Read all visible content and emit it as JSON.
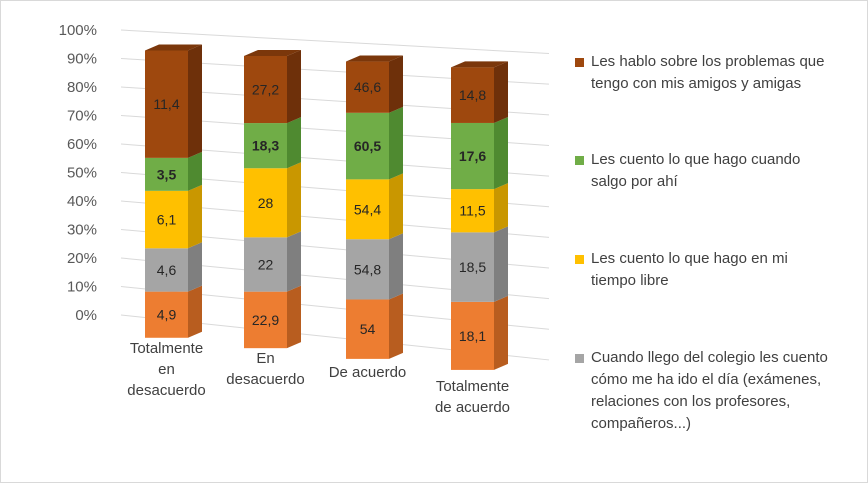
{
  "chart_data": {
    "type": "bar",
    "subtype": "stacked-100-3d",
    "categories": [
      [
        "Totalmente",
        "en",
        "desacuerdo"
      ],
      [
        "En",
        "desacuerdo"
      ],
      [
        "De acuerdo"
      ],
      [
        "Totalmente",
        "de acuerdo"
      ]
    ],
    "yticks": [
      "0%",
      "10%",
      "20%",
      "30%",
      "40%",
      "50%",
      "60%",
      "70%",
      "80%",
      "90%",
      "100%"
    ],
    "ylim": [
      0,
      100
    ],
    "grid": true,
    "legend_position": "right",
    "series": [
      {
        "name": "Cuando llego del colegio les cuento cómo me ha ido el día (exámenes, relaciones con los profesores, compañeros...)",
        "legend_lines": [
          "Cuando llego del colegio les cuento",
          "cómo me ha ido el día (exámenes,",
          "relaciones con los profesores,",
          "compañeros...)"
        ],
        "color": "#A5A5A5",
        "side_color": "#7f7f7f",
        "values": [
          4.6,
          22,
          54.8,
          18.5
        ],
        "labels": [
          "4,6",
          "22",
          "54,8",
          "18,5"
        ],
        "bold": false
      },
      {
        "name": "Les cuento lo que hago en mi tiempo libre",
        "legend_lines": [
          "Les cuento lo que hago en mi",
          "tiempo libre"
        ],
        "color": "#FFC000",
        "side_color": "#c99700",
        "values": [
          6.1,
          28,
          54.4,
          11.5
        ],
        "labels": [
          "6,1",
          "28",
          "54,4",
          "11,5"
        ],
        "bold": false
      },
      {
        "name": "Les cuento lo que hago cuando salgo por ahí",
        "legend_lines": [
          "Les cuento lo que hago cuando",
          "salgo por ahí"
        ],
        "color": "#70AD47",
        "side_color": "#4f8a30",
        "values": [
          3.5,
          18.3,
          60.5,
          17.6
        ],
        "labels": [
          "3,5",
          "18,3",
          "60,5",
          "17,6"
        ],
        "bold": true
      },
      {
        "name": "Les hablo sobre los problemas que tengo con mis amigos y amigas",
        "legend_lines": [
          "Les hablo sobre los problemas que",
          "tengo con mis amigos y amigas"
        ],
        "color": "#9E480E",
        "side_color": "#6e300a",
        "values": [
          11.4,
          27.2,
          46.6,
          14.8
        ],
        "labels": [
          "11,4",
          "27,2",
          "46,6",
          "14,8"
        ],
        "bold": false
      }
    ],
    "base_series": {
      "name": "",
      "color": "#ED7D31",
      "side_color": "#b85d1f",
      "values": [
        4.9,
        22.9,
        54,
        18.1
      ],
      "labels": [
        "4,9",
        "22,9",
        "54",
        "18,1"
      ],
      "bold": false
    },
    "legend_order": [
      3,
      2,
      1,
      0
    ]
  }
}
